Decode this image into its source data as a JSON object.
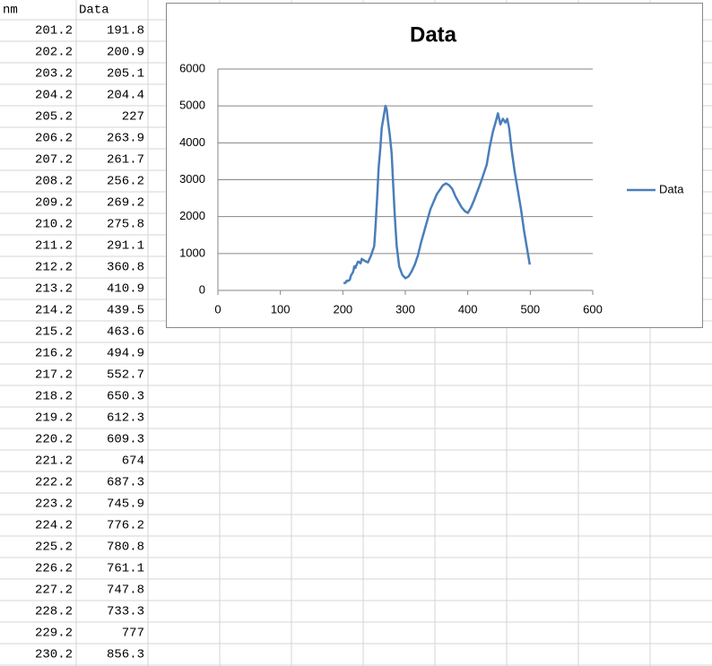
{
  "table": {
    "header": [
      "nm",
      "Data"
    ],
    "rows": [
      [
        201.2,
        191.8
      ],
      [
        202.2,
        200.9
      ],
      [
        203.2,
        205.1
      ],
      [
        204.2,
        204.4
      ],
      [
        205.2,
        227
      ],
      [
        206.2,
        263.9
      ],
      [
        207.2,
        261.7
      ],
      [
        208.2,
        256.2
      ],
      [
        209.2,
        269.2
      ],
      [
        210.2,
        275.8
      ],
      [
        211.2,
        291.1
      ],
      [
        212.2,
        360.8
      ],
      [
        213.2,
        410.9
      ],
      [
        214.2,
        439.5
      ],
      [
        215.2,
        463.6
      ],
      [
        216.2,
        494.9
      ],
      [
        217.2,
        552.7
      ],
      [
        218.2,
        650.3
      ],
      [
        219.2,
        612.3
      ],
      [
        220.2,
        609.3
      ],
      [
        221.2,
        674
      ],
      [
        222.2,
        687.3
      ],
      [
        223.2,
        745.9
      ],
      [
        224.2,
        776.2
      ],
      [
        225.2,
        780.8
      ],
      [
        226.2,
        761.1
      ],
      [
        227.2,
        747.8
      ],
      [
        228.2,
        733.3
      ],
      [
        229.2,
        777
      ],
      [
        230.2,
        856.3
      ]
    ]
  },
  "chart_data": {
    "type": "line",
    "title": "Data",
    "x": [
      201.2,
      202.2,
      203.2,
      204.2,
      205.2,
      206.2,
      207.2,
      208.2,
      209.2,
      210.2,
      211.2,
      212.2,
      213.2,
      214.2,
      215.2,
      216.2,
      217.2,
      218.2,
      219.2,
      220.2,
      221.2,
      222.2,
      223.2,
      224.2,
      225.2,
      226.2,
      227.2,
      228.2,
      229.2,
      230.2,
      235.2,
      240.2,
      245.2,
      250.2,
      252.2,
      255.2,
      257.2,
      260.2,
      262.2,
      265.2,
      268.2,
      270.2,
      272.2,
      275.2,
      278.2,
      280.2,
      283.2,
      286.2,
      290.2,
      295.2,
      300.2,
      305.2,
      310.2,
      315.2,
      320.2,
      325.2,
      330.2,
      340.2,
      350.2,
      360.2,
      365.2,
      370.2,
      375.2,
      380.2,
      385.2,
      390.2,
      395.2,
      400.2,
      405.2,
      410.2,
      420.2,
      430.2,
      435.2,
      440.2,
      445.2,
      448.2,
      452.2,
      456.2,
      460.2,
      463.2,
      466.2,
      470.2,
      475.2,
      480.2,
      485.2,
      490.2,
      495.2,
      499.2
    ],
    "series": [
      {
        "name": "Data",
        "color": "#4a7ebb",
        "values": [
          191.8,
          200.9,
          205.1,
          204.4,
          227,
          263.9,
          261.7,
          256.2,
          269.2,
          275.8,
          291.1,
          360.8,
          410.9,
          439.5,
          463.6,
          494.9,
          552.7,
          650.3,
          612.3,
          609.3,
          674,
          687.3,
          745.9,
          776.2,
          780.8,
          761.1,
          747.8,
          733.3,
          777,
          856.3,
          800,
          760,
          950,
          1200,
          1700,
          2600,
          3300,
          3900,
          4400,
          4700,
          5000,
          4900,
          4600,
          4200,
          3700,
          3000,
          2000,
          1200,
          650,
          420,
          330,
          380,
          520,
          700,
          950,
          1300,
          1600,
          2200,
          2600,
          2850,
          2900,
          2850,
          2750,
          2550,
          2400,
          2250,
          2150,
          2100,
          2250,
          2450,
          2900,
          3400,
          3900,
          4300,
          4600,
          4800,
          4500,
          4650,
          4550,
          4650,
          4400,
          3800,
          3200,
          2700,
          2200,
          1600,
          1100,
          700
        ]
      }
    ],
    "xlim": [
      0,
      600
    ],
    "xticks": [
      0,
      100,
      200,
      300,
      400,
      500,
      600
    ],
    "ylim": [
      0,
      6000
    ],
    "yticks": [
      0,
      1000,
      2000,
      3000,
      4000,
      5000,
      6000
    ],
    "grid": true,
    "legend": "right"
  }
}
